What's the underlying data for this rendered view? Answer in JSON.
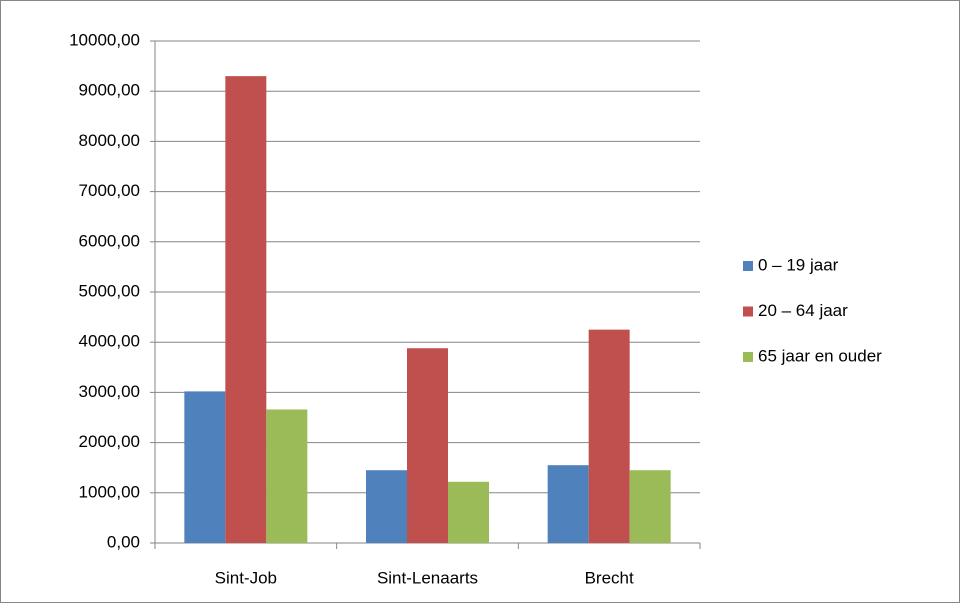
{
  "chart_data": {
    "type": "bar",
    "categories": [
      "Sint-Job",
      "Sint-Lenaarts",
      "Brecht"
    ],
    "series": [
      {
        "name": "0 – 19 jaar",
        "color": "#4f81bd",
        "values": [
          3020,
          1450,
          1550
        ]
      },
      {
        "name": "20 – 64 jaar",
        "color": "#c0504d",
        "values": [
          9300,
          3880,
          4250
        ]
      },
      {
        "name": "65 jaar en ouder",
        "color": "#9bbb59",
        "values": [
          2660,
          1220,
          1450
        ]
      }
    ],
    "ylim": [
      0,
      10000
    ],
    "yticks": [
      {
        "value": 0,
        "label": "0,00"
      },
      {
        "value": 1000,
        "label": "1000,00"
      },
      {
        "value": 2000,
        "label": "2000,00"
      },
      {
        "value": 3000,
        "label": "3000,00"
      },
      {
        "value": 4000,
        "label": "4000,00"
      },
      {
        "value": 5000,
        "label": "5000,00"
      },
      {
        "value": 6000,
        "label": "6000,00"
      },
      {
        "value": 7000,
        "label": "7000,00"
      },
      {
        "value": 8000,
        "label": "8000,00"
      },
      {
        "value": 9000,
        "label": "9000,00"
      },
      {
        "value": 10000,
        "label": "10000,00"
      }
    ],
    "grid": true,
    "legend": "right"
  }
}
